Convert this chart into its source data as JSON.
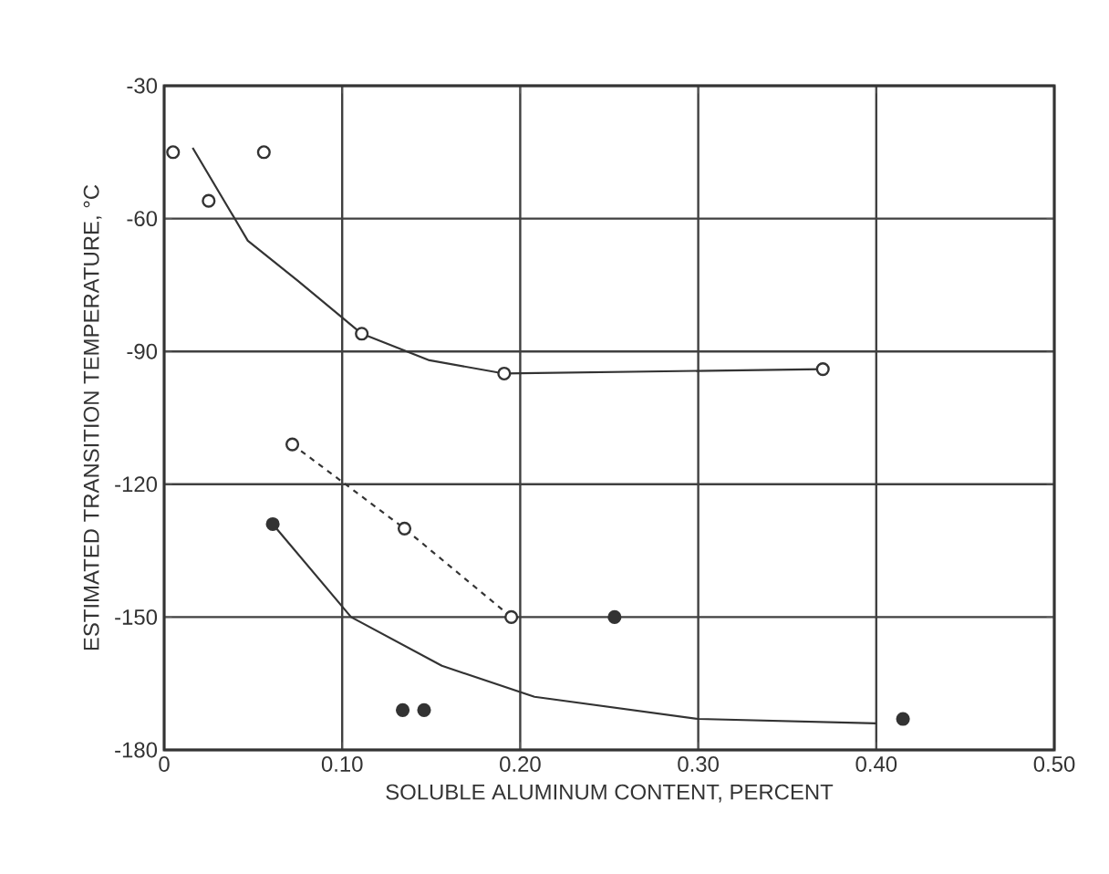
{
  "chart_data": {
    "type": "scatter",
    "xlabel": "SOLUBLE ALUMINUM CONTENT, PERCENT",
    "ylabel": "ESTIMATED TRANSITION TEMPERATURE, °C",
    "xlim": [
      0,
      0.5
    ],
    "ylim": [
      -180,
      -30
    ],
    "xticks": [
      0,
      {
        "value": 0.1,
        "label": "0.10"
      },
      {
        "value": 0.2,
        "label": "0.20"
      },
      {
        "value": 0.3,
        "label": "0.30"
      },
      {
        "value": 0.4,
        "label": "0.40"
      },
      {
        "value": 0.5,
        "label": "0.50"
      }
    ],
    "yticks": [
      -180,
      -150,
      -120,
      -90,
      -60,
      -30
    ],
    "grid": true,
    "marker": "circle",
    "series": [
      {
        "color": "#333333",
        "x": [
          0.005,
          0.025,
          0.056,
          0.111,
          0.191,
          0.37
        ],
        "values": [
          -45,
          -56,
          -45,
          -86,
          -95,
          -94
        ]
      },
      {
        "type": "line",
        "color": "#333333",
        "marker": "none",
        "x": [
          0.016,
          0.047,
          0.075,
          0.111,
          0.149,
          0.191,
          0.37
        ],
        "values": [
          -44,
          -65,
          -74,
          -86,
          -92,
          -95,
          -94
        ]
      },
      {
        "type": "line",
        "color": "#333333",
        "line_style": "dashed",
        "x": [
          0.072,
          0.135,
          0.195
        ],
        "values": [
          -111,
          -130,
          -150
        ]
      },
      {
        "type": "line",
        "color": "#333333",
        "marker": "none",
        "x": [
          0.061,
          0.105,
          0.156,
          0.208,
          0.3,
          0.4
        ],
        "values": [
          -129,
          -150,
          -161,
          -168,
          -173,
          -174
        ]
      },
      {
        "color": "#333333",
        "x": [
          0.061,
          0.253,
          0.134,
          0.146,
          0.415
        ],
        "values": [
          -129,
          -150,
          -171,
          -171,
          -173
        ]
      }
    ]
  }
}
